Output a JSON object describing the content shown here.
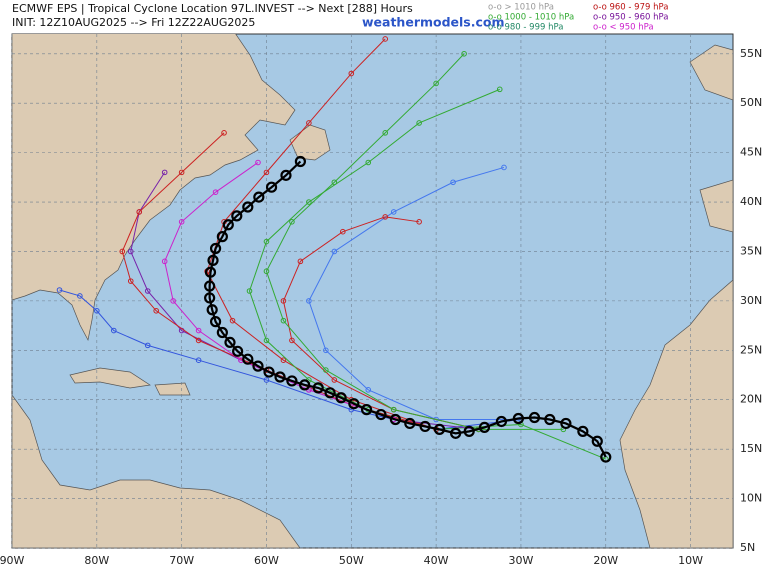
{
  "header": {
    "title": "ECMWF EPS | Tropical Cyclone Location 97L.INVEST --> Next [288] Hours",
    "init": "INIT: 12Z10AUG2025 --> Fri 12Z22AUG2025",
    "source": "weathermodels.com"
  },
  "legend": [
    {
      "label": "o-o > 1010 hPa",
      "color": "#9a9a9a"
    },
    {
      "label": "o-o 1000 - 1010 hPa",
      "color": "#33aa33"
    },
    {
      "label": "o-o 980 - 999 hPa",
      "color": "#228866"
    },
    {
      "label": "o-o 960 - 979 hPa",
      "color": "#bb1111"
    },
    {
      "label": "o-o 950 - 960 hPa",
      "color": "#771199"
    },
    {
      "label": "o-o < 950 hPa",
      "color": "#cc22cc"
    }
  ],
  "map": {
    "xlim": [
      -90,
      -5
    ],
    "ylim": [
      5,
      57
    ],
    "xticks": [
      {
        "value": -90,
        "label": "90W"
      },
      {
        "value": -80,
        "label": "80W"
      },
      {
        "value": -70,
        "label": "70W"
      },
      {
        "value": -60,
        "label": "60W"
      },
      {
        "value": -50,
        "label": "50W"
      },
      {
        "value": -40,
        "label": "40W"
      },
      {
        "value": -30,
        "label": "30W"
      },
      {
        "value": -20,
        "label": "20W"
      },
      {
        "value": -10,
        "label": "10W"
      }
    ],
    "yticks": [
      {
        "value": 5,
        "label": "5N"
      },
      {
        "value": 10,
        "label": "10N"
      },
      {
        "value": 15,
        "label": "15N"
      },
      {
        "value": 20,
        "label": "20N"
      },
      {
        "value": 25,
        "label": "25N"
      },
      {
        "value": 30,
        "label": "30N"
      },
      {
        "value": 35,
        "label": "35N"
      },
      {
        "value": 40,
        "label": "40N"
      },
      {
        "value": 45,
        "label": "45N"
      },
      {
        "value": 50,
        "label": "50N"
      },
      {
        "value": 55,
        "label": "55N"
      }
    ],
    "members": [
      {
        "color": "#cc2222",
        "lon": [
          -40,
          -50,
          -58,
          -64,
          -67,
          -65,
          -60,
          -55,
          -50,
          -46
        ],
        "lat": [
          17,
          20,
          24,
          28,
          33,
          38,
          43,
          48,
          53,
          56.5
        ]
      },
      {
        "color": "#3355dd",
        "lon": [
          -30,
          -40,
          -50,
          -60,
          -68,
          -74,
          -78,
          -80,
          -82,
          -84.4
        ],
        "lat": [
          18,
          17,
          19,
          22,
          24,
          25.5,
          27,
          29,
          30.5,
          31.1
        ]
      },
      {
        "color": "#33aa33",
        "lon": [
          -20,
          -30,
          -40,
          -48,
          -55,
          -60,
          -62,
          -60,
          -55,
          -48,
          -42,
          -32.5
        ],
        "lat": [
          14,
          17.5,
          17,
          19,
          22,
          26,
          31,
          36,
          40,
          44,
          48,
          51.4
        ]
      },
      {
        "color": "#7722aa",
        "lon": [
          -35,
          -45,
          -55,
          -63,
          -70,
          -74,
          -76,
          -75,
          -72
        ],
        "lat": [
          17,
          18,
          21,
          24,
          27,
          31,
          35,
          39,
          43
        ]
      },
      {
        "color": "#cc2222",
        "lon": [
          -40,
          -50,
          -60,
          -68,
          -73,
          -76,
          -77,
          -75,
          -70,
          -65
        ],
        "lat": [
          17,
          19.5,
          23,
          26,
          29,
          32,
          35,
          39,
          43,
          47
        ]
      },
      {
        "color": "#4477ee",
        "lon": [
          -30,
          -40,
          -48,
          -53,
          -55,
          -52,
          -45,
          -38,
          -32
        ],
        "lat": [
          18,
          18,
          21,
          25,
          30,
          35,
          39,
          42,
          43.5
        ]
      },
      {
        "color": "#cc2222",
        "lon": [
          -35,
          -45,
          -52,
          -57,
          -58,
          -56,
          -51,
          -46,
          -42
        ],
        "lat": [
          17,
          19,
          22,
          26,
          30,
          34,
          37,
          38.5,
          38
        ]
      },
      {
        "color": "#33aa33",
        "lon": [
          -25,
          -35,
          -45,
          -53,
          -58,
          -60,
          -57,
          -52,
          -46,
          -40,
          -36.7
        ],
        "lat": [
          17,
          17,
          19,
          23,
          28,
          33,
          38,
          42,
          47,
          52,
          55
        ]
      },
      {
        "color": "#cc22cc",
        "lon": [
          -45,
          -55,
          -63,
          -68,
          -71,
          -72,
          -70,
          -66,
          -61
        ],
        "lat": [
          18,
          21,
          24,
          27,
          30,
          34,
          38,
          41,
          44
        ]
      }
    ],
    "mean_track": {
      "lon": [
        -20,
        -21,
        -22.7,
        -24.7,
        -26.6,
        -28.4,
        -30.3,
        -32.3,
        -34.3,
        -36.1,
        -37.7,
        -39.6,
        -41.3,
        -43.1,
        -44.8,
        -46.5,
        -48.2,
        -49.7,
        -51.2,
        -52.5,
        -53.9,
        -55.5,
        -57,
        -58.4,
        -59.7,
        -61,
        -62.2,
        -63.4,
        -64.3,
        -65.2,
        -66,
        -66.4,
        -66.7,
        -66.7,
        -66.6,
        -66.3,
        -66,
        -65.2,
        -64.5,
        -63.5,
        -62.2,
        -60.9,
        -59.4,
        -57.7,
        -56
      ],
      "lat": [
        14.2,
        15.8,
        16.8,
        17.6,
        18,
        18.2,
        18.1,
        17.8,
        17.2,
        16.8,
        16.6,
        17,
        17.3,
        17.6,
        18,
        18.5,
        19,
        19.6,
        20.2,
        20.7,
        21.2,
        21.5,
        21.9,
        22.3,
        22.8,
        23.4,
        24.1,
        24.9,
        25.8,
        26.8,
        27.9,
        29.1,
        30.3,
        31.5,
        32.9,
        34.1,
        35.3,
        36.5,
        37.7,
        38.6,
        39.5,
        40.5,
        41.5,
        42.7,
        44.1
      ]
    }
  }
}
